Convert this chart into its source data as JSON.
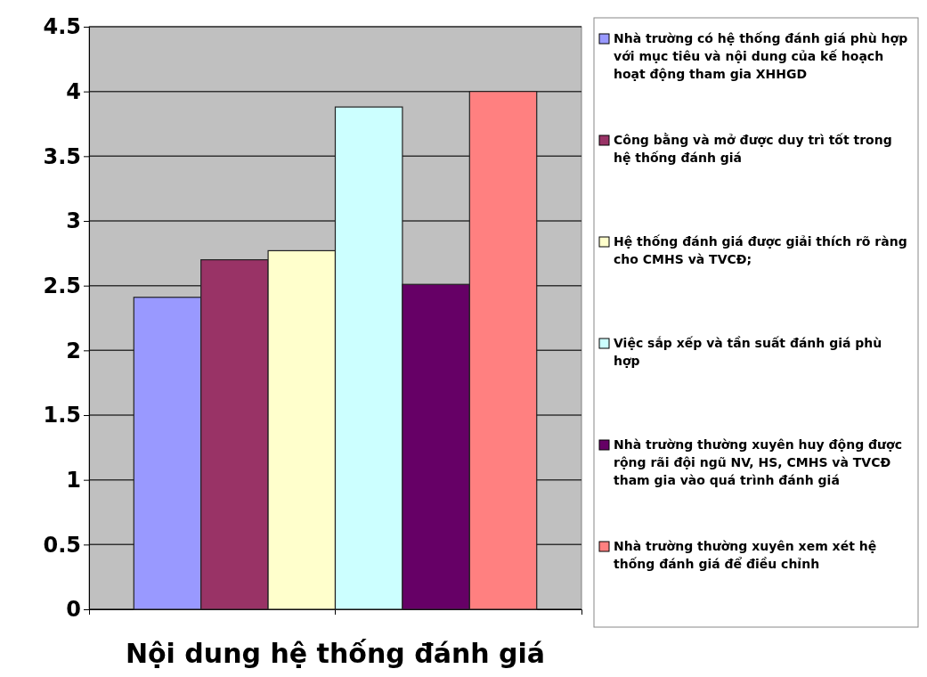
{
  "chart_data": {
    "type": "bar",
    "xlabel": "Nội dung hệ thống đánh giá",
    "categories": [
      null
    ],
    "series": [
      {
        "name": "Nhà trường có hệ thống đánh giá phù hợp với mục tiêu và nội dung của kế hoạch hoạt động tham gia XHHGD",
        "color": "#9999ff",
        "values": [
          2.41
        ]
      },
      {
        "name": "Công bằng và mở được duy trì tốt trong hệ thống đánh giá",
        "color": "#993366",
        "values": [
          2.7
        ]
      },
      {
        "name": "Hệ thống đánh giá được giải thích rõ ràng cho CMHS và TVCĐ;",
        "color": "#ffffcc",
        "values": [
          2.77
        ]
      },
      {
        "name": "Việc sắp xếp và tần suất đánh giá phù hợp",
        "color": "#ccffff",
        "values": [
          3.88
        ]
      },
      {
        "name": "Nhà trường thường xuyên huy động được rộng rãi đội ngũ NV, HS, CMHS và TVCĐ tham gia vào quá trình đánh giá",
        "color": "#660066",
        "values": [
          2.51
        ]
      },
      {
        "name": "Nhà trường thường xuyên xem xét hệ thống đánh giá để điều chỉnh",
        "color": "#ff8080",
        "values": [
          4.0
        ]
      }
    ],
    "ylim": [
      0,
      4.5
    ],
    "yticks": [
      0,
      0.5,
      1,
      1.5,
      2,
      2.5,
      3,
      3.5,
      4,
      4.5
    ],
    "grid": "y",
    "legend": "right"
  }
}
